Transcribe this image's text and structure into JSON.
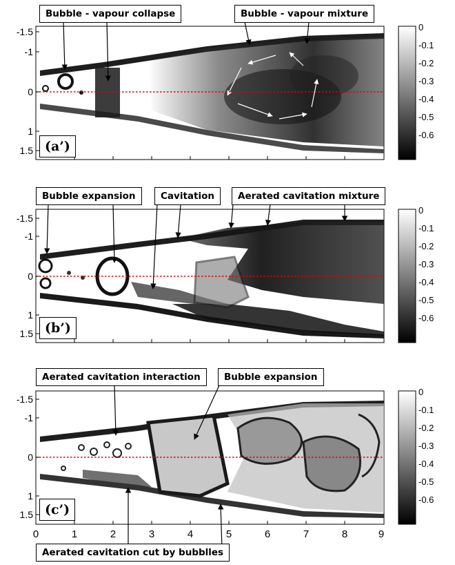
{
  "panels": [
    {
      "tag": "(a’)",
      "labels": [
        "Bubble - vapour collapse",
        "Bubble - vapour mixture"
      ],
      "y_ticks": [
        "-1.5",
        "-1",
        "0",
        "1",
        "1.5"
      ],
      "colorbar_ticks": [
        "0",
        "-0.1",
        "-0.2",
        "-0.3",
        "-0.4",
        "-0.5",
        "-0.6"
      ]
    },
    {
      "tag": "(b’)",
      "labels": [
        "Bubble expansion",
        "Cavitation",
        "Aerated cavitation mixture"
      ],
      "y_ticks": [
        "-1.5",
        "-1",
        "0",
        "1",
        "1.5"
      ],
      "colorbar_ticks": [
        "0",
        "-0.1",
        "-0.2",
        "-0.3",
        "-0.4",
        "-0.5",
        "-0.6"
      ]
    },
    {
      "tag": "(c’)",
      "labels": [
        "Aerated cavitation interaction",
        "Bubble expansion",
        "Aerated cavitation cut by bubblles"
      ],
      "y_ticks": [
        "-1.5",
        "-1",
        "0",
        "1",
        "1.5"
      ],
      "colorbar_ticks": [
        "0",
        "-0.1",
        "-0.2",
        "-0.3",
        "-0.4",
        "-0.5",
        "-0.6"
      ]
    }
  ],
  "x_ticks": [
    "0",
    "1",
    "2",
    "3",
    "4",
    "5",
    "6",
    "7",
    "8",
    "9"
  ],
  "colors": {
    "centerline": "#e60000",
    "frame": "#000000"
  }
}
